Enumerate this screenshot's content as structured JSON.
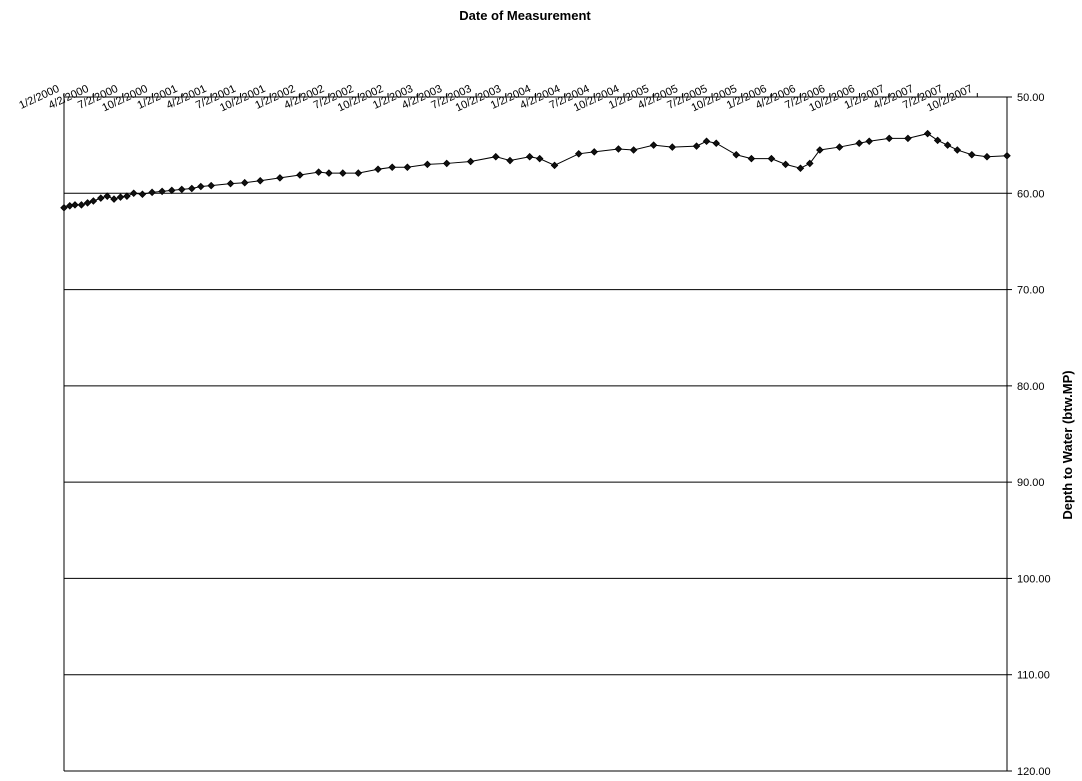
{
  "chart_data": {
    "type": "line",
    "title": "",
    "xlabel": "Date of Measurement",
    "ylabel": "Depth to Water (btw.MP)",
    "x_axis_position": "top",
    "y_axis_position": "right",
    "y_inverted": true,
    "xlim": [
      "2000-01-02",
      "2008-01-02"
    ],
    "ylim": [
      50,
      120
    ],
    "x_tick_labels": [
      "1/2/2000",
      "4/2/2000",
      "7/2/2000",
      "10/2/2000",
      "1/2/2001",
      "4/2/2001",
      "7/2/2001",
      "10/2/2001",
      "1/2/2002",
      "4/2/2002",
      "7/2/2002",
      "10/2/2002",
      "1/2/2003",
      "4/2/2003",
      "7/2/2003",
      "10/2/2003",
      "1/2/2004",
      "4/2/2004",
      "7/2/2004",
      "10/2/2004",
      "1/2/2005",
      "4/2/2005",
      "7/2/2005",
      "10/2/2005",
      "1/2/2006",
      "4/2/2006",
      "7/2/2006",
      "10/2/2006",
      "1/2/2007",
      "4/2/2007",
      "7/2/2007",
      "10/2/2007"
    ],
    "y_tick_labels": [
      "50.00",
      "60.00",
      "70.00",
      "80.00",
      "90.00",
      "100.00",
      "110.00",
      "120.00"
    ],
    "grid": "horizontal",
    "series": [
      {
        "color": "#000000",
        "marker": "diamond",
        "points": [
          [
            "2000-01-02",
            61.5
          ],
          [
            "2000-01-20",
            61.3
          ],
          [
            "2000-02-05",
            61.2
          ],
          [
            "2000-02-25",
            61.2
          ],
          [
            "2000-03-15",
            61.0
          ],
          [
            "2000-04-02",
            60.8
          ],
          [
            "2000-04-25",
            60.5
          ],
          [
            "2000-05-15",
            60.3
          ],
          [
            "2000-06-05",
            60.6
          ],
          [
            "2000-06-25",
            60.4
          ],
          [
            "2000-07-15",
            60.3
          ],
          [
            "2000-08-05",
            60.0
          ],
          [
            "2000-09-01",
            60.1
          ],
          [
            "2000-10-01",
            59.9
          ],
          [
            "2000-11-01",
            59.8
          ],
          [
            "2000-12-01",
            59.7
          ],
          [
            "2001-01-01",
            59.6
          ],
          [
            "2001-02-01",
            59.5
          ],
          [
            "2001-03-01",
            59.3
          ],
          [
            "2001-04-02",
            59.2
          ],
          [
            "2001-06-01",
            59.0
          ],
          [
            "2001-07-15",
            58.9
          ],
          [
            "2001-09-01",
            58.7
          ],
          [
            "2001-11-01",
            58.4
          ],
          [
            "2002-01-02",
            58.1
          ],
          [
            "2002-03-01",
            57.8
          ],
          [
            "2002-04-02",
            57.9
          ],
          [
            "2002-05-15",
            57.9
          ],
          [
            "2002-07-02",
            57.9
          ],
          [
            "2002-09-01",
            57.5
          ],
          [
            "2002-10-15",
            57.3
          ],
          [
            "2002-12-01",
            57.3
          ],
          [
            "2003-02-01",
            57.0
          ],
          [
            "2003-04-02",
            56.9
          ],
          [
            "2003-06-15",
            56.7
          ],
          [
            "2003-09-01",
            56.2
          ],
          [
            "2003-10-15",
            56.6
          ],
          [
            "2003-12-15",
            56.2
          ],
          [
            "2004-01-15",
            56.4
          ],
          [
            "2004-03-01",
            57.1
          ],
          [
            "2004-05-15",
            55.9
          ],
          [
            "2004-07-02",
            55.7
          ],
          [
            "2004-09-15",
            55.4
          ],
          [
            "2004-11-01",
            55.5
          ],
          [
            "2005-01-02",
            55.0
          ],
          [
            "2005-03-01",
            55.2
          ],
          [
            "2005-05-15",
            55.1
          ],
          [
            "2005-06-15",
            54.6
          ],
          [
            "2005-07-15",
            54.8
          ],
          [
            "2005-09-15",
            56.0
          ],
          [
            "2005-11-01",
            56.4
          ],
          [
            "2006-01-02",
            56.4
          ],
          [
            "2006-02-15",
            57.0
          ],
          [
            "2006-04-02",
            57.4
          ],
          [
            "2006-05-01",
            56.9
          ],
          [
            "2006-06-01",
            55.5
          ],
          [
            "2006-08-01",
            55.2
          ],
          [
            "2006-10-01",
            54.8
          ],
          [
            "2006-11-01",
            54.6
          ],
          [
            "2007-01-02",
            54.3
          ],
          [
            "2007-03-01",
            54.3
          ],
          [
            "2007-05-01",
            53.8
          ],
          [
            "2007-06-01",
            54.5
          ],
          [
            "2007-07-02",
            55.0
          ],
          [
            "2007-08-01",
            55.5
          ],
          [
            "2007-09-15",
            56.0
          ],
          [
            "2007-11-01",
            56.2
          ],
          [
            "2008-01-02",
            56.1
          ]
        ]
      }
    ]
  }
}
